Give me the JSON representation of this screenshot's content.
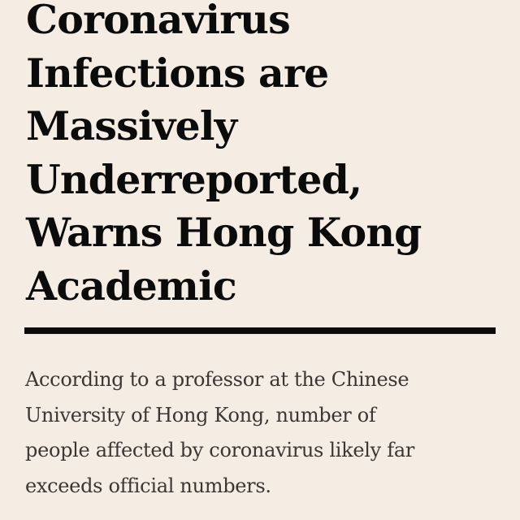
{
  "article": {
    "headline": "Coronavirus\nInfections are\nMassively\nUnderreported,\nWarns Hong Kong\nAcademic",
    "dek": "According to a professor at the Chinese\nUniversity of Hong Kong, number of\npeople affected by coronavirus likely far\nexceeds official numbers."
  },
  "colors": {
    "background": "#f5ede4",
    "headline_text": "#0b0b0b",
    "rule": "#0b0b0b",
    "body_text": "#3a3634"
  }
}
